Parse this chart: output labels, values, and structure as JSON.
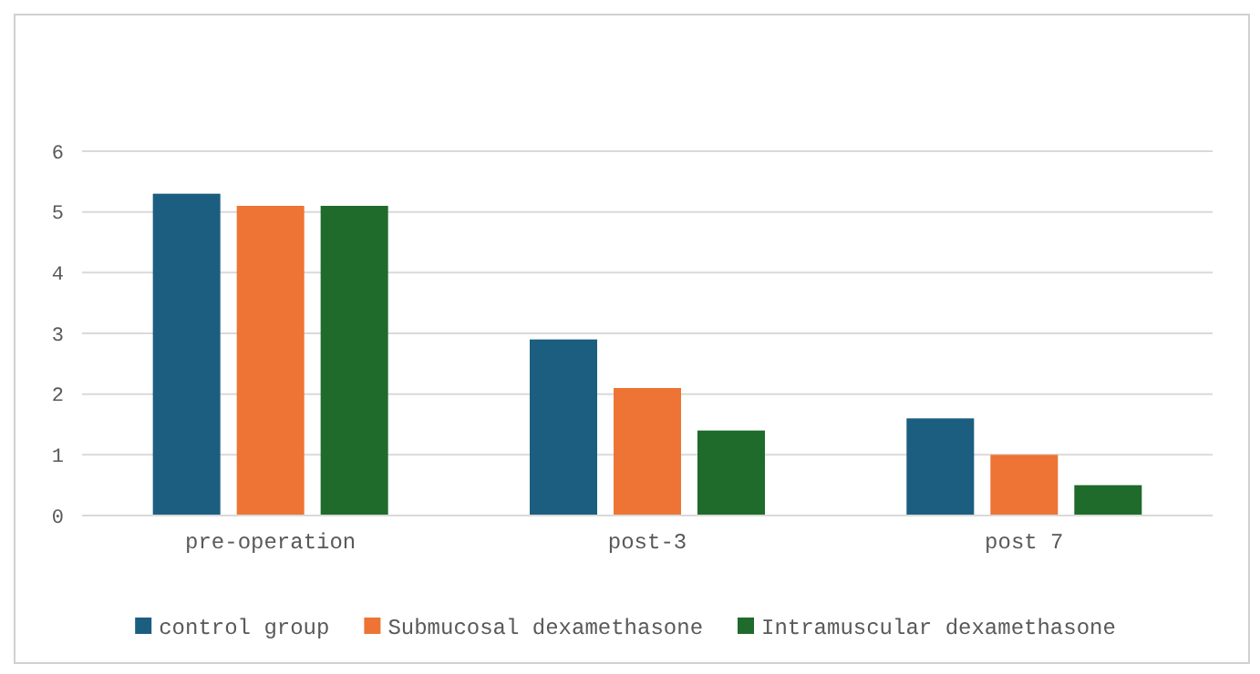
{
  "chart_data": {
    "type": "bar",
    "categories": [
      "pre-operation",
      "post-3",
      "post 7"
    ],
    "series": [
      {
        "name": "control group",
        "color": "#1b5e80",
        "values": [
          5.3,
          2.9,
          1.6
        ]
      },
      {
        "name": "Submucosal dexamethasone",
        "color": "#ed7434",
        "values": [
          5.1,
          2.1,
          1.0
        ]
      },
      {
        "name": "Intramuscular dexamethasone",
        "color": "#1f6b2b",
        "values": [
          5.1,
          1.4,
          0.5
        ]
      }
    ],
    "ylim": [
      0,
      6
    ],
    "yticks": [
      0,
      1,
      2,
      3,
      4,
      5,
      6
    ],
    "grid": "y",
    "legend": "bottom"
  }
}
